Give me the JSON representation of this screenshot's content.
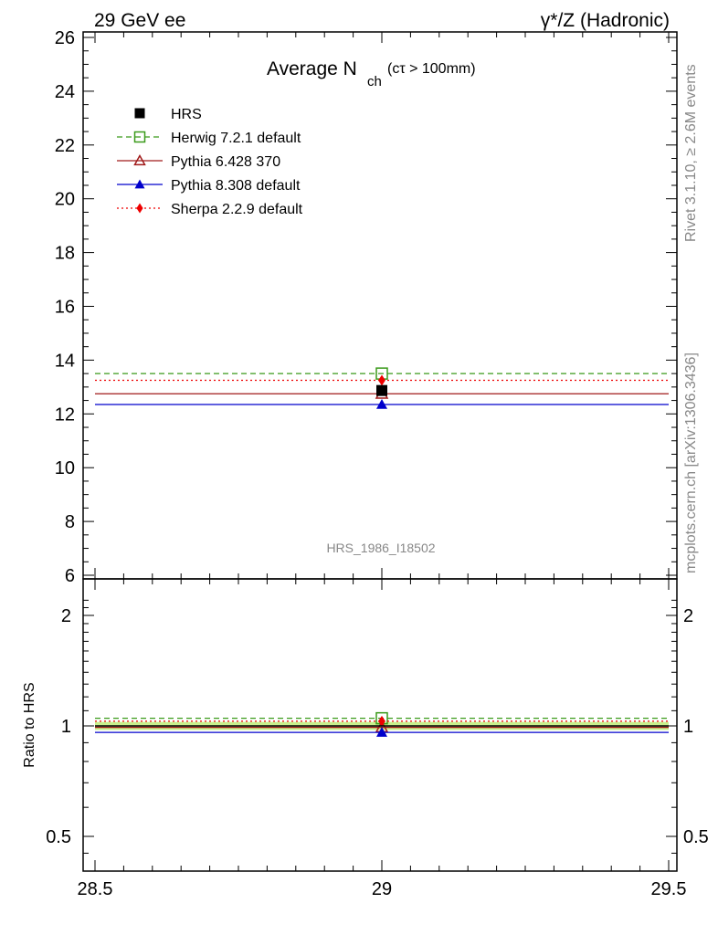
{
  "header": {
    "left": "29 GeV ee",
    "right": "γ*/Z (Hadronic)"
  },
  "side_labels": {
    "rivet": "Rivet 3.1.10, ≥ 2.6M events",
    "mcplots": "mcplots.cern.ch [arXiv:1306.3436]"
  },
  "chart_data": [
    {
      "type": "line",
      "title": "Average N",
      "title_sub": "ch",
      "title_suffix": "(cτ > 100mm)",
      "watermark": "HRS_1986_I18502",
      "xlim": [
        28.5,
        29.5
      ],
      "ylim": [
        6,
        26.3
      ],
      "x_ticks": [
        "28.5",
        "29",
        "29.5"
      ],
      "y_ticks": [
        6,
        8,
        10,
        12,
        14,
        16,
        18,
        20,
        22,
        24,
        26
      ],
      "grid": false,
      "legend_position": "top-left",
      "series": [
        {
          "name": "HRS",
          "x": [
            29
          ],
          "y": [
            12.87
          ],
          "color": "#000000",
          "marker": "filled-square",
          "line": "none"
        },
        {
          "name": "Herwig 7.2.1 default",
          "x": [
            29
          ],
          "y": [
            13.5
          ],
          "color": "#3a9a1a",
          "marker": "open-square",
          "line": "dashed"
        },
        {
          "name": "Pythia 6.428 370",
          "x": [
            29
          ],
          "y": [
            12.75
          ],
          "color": "#a01a1a",
          "marker": "open-triangle",
          "line": "solid"
        },
        {
          "name": "Pythia 8.308 default",
          "x": [
            29
          ],
          "y": [
            12.35
          ],
          "color": "#0000cc",
          "marker": "filled-triangle",
          "line": "solid"
        },
        {
          "name": "Sherpa 2.2.9 default",
          "x": [
            29
          ],
          "y": [
            13.25
          ],
          "color": "#ee0000",
          "marker": "filled-diamond",
          "line": "dotted"
        }
      ]
    },
    {
      "type": "line",
      "ylabel": "Ratio to HRS",
      "xlim": [
        28.5,
        29.5
      ],
      "ylim": [
        0.42,
        2.3
      ],
      "y_scale": "log",
      "y_ticks": [
        "0.5",
        "1",
        "2"
      ],
      "x_ticks": [
        "28.5",
        "29",
        "29.5"
      ],
      "band": {
        "lower": 0.975,
        "upper": 1.025,
        "color": "#c8f08c"
      },
      "series": [
        {
          "name": "HRS",
          "y": [
            1.0
          ],
          "color": "#000000"
        },
        {
          "name": "Herwig 7.2.1 default",
          "y": [
            1.049
          ],
          "color": "#3a9a1a"
        },
        {
          "name": "Pythia 6.428 370",
          "y": [
            0.991
          ],
          "color": "#a01a1a"
        },
        {
          "name": "Pythia 8.308 default",
          "y": [
            0.96
          ],
          "color": "#0000cc"
        },
        {
          "name": "Sherpa 2.2.9 default",
          "y": [
            1.03
          ],
          "color": "#ee0000"
        }
      ]
    }
  ]
}
